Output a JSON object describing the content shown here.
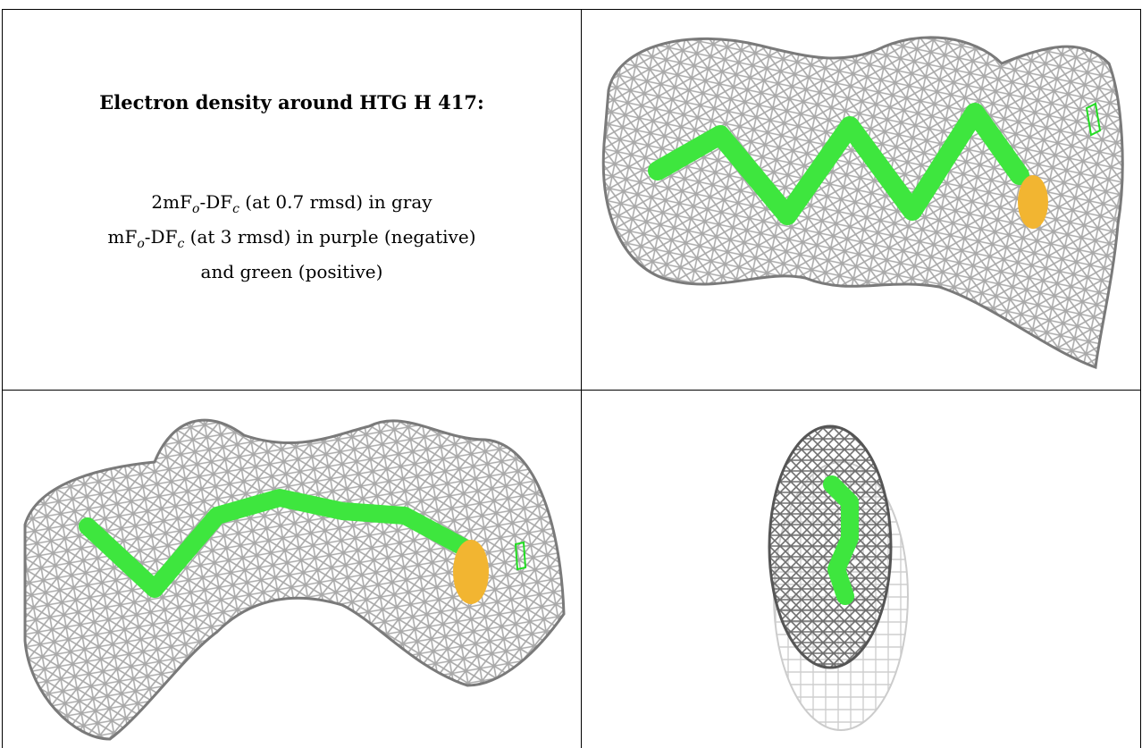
{
  "legend": {
    "title": "Electron density around HTG H 417:",
    "line1": {
      "pre": "2mF",
      "sub1": "o",
      "mid": "-DF",
      "sub2": "c",
      "post": " (at 0.7 rmsd) in gray"
    },
    "line2": {
      "pre": "mF",
      "sub1": "o",
      "mid": "-DF",
      "sub2": "c",
      "post": " (at 3 rmsd) in purple (negative)"
    },
    "line3": "and green (positive)"
  },
  "colors": {
    "mesh": "#a9a9a9",
    "mesh_dark": "#6f6f6f",
    "ligand": "#3ee63e",
    "oxygen": "#f2b531",
    "positive_density": "#22dd22"
  },
  "panels": [
    {
      "view": "top-right",
      "content": "gray mesh with green zigzag ligand and gold atom"
    },
    {
      "view": "bottom-left",
      "content": "gray mesh with green ligand and gold atom"
    },
    {
      "view": "bottom-right",
      "content": "end-on view of gray mesh with green ligand"
    }
  ]
}
